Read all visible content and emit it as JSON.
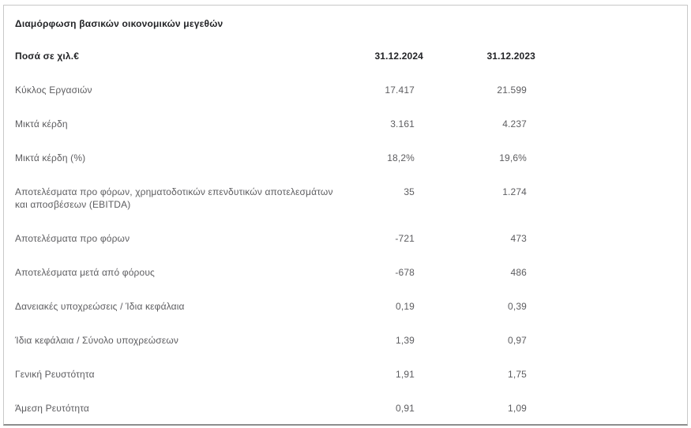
{
  "theme": {
    "text_primary": "#232427",
    "text_secondary": "#5d5d60",
    "border": "#c8c8c8",
    "border_bottom": "#8d8d8d",
    "background": "#ffffff"
  },
  "panel": {
    "title": "Διαμόρφωση βασικών οικονομικών μεγεθών",
    "table": {
      "unit_label": "Ποσά σε χιλ.€",
      "columns": [
        "31.12.2024",
        "31.12.2023"
      ],
      "rows": [
        {
          "label": "Κύκλος Εργασιών",
          "v2024": "17.417",
          "v2023": "21.599"
        },
        {
          "label": "Μικτά κέρδη",
          "v2024": "3.161",
          "v2023": "4.237"
        },
        {
          "label": "Μικτά κέρδη (%)",
          "v2024": "18,2%",
          "v2023": "19,6%"
        },
        {
          "label": "Αποτελέσματα προ φόρων, χρηματοδοτικών επενδυτικών αποτελεσμάτων και αποσβέσεων (EBITDA)",
          "v2024": "35",
          "v2023": "1.274"
        },
        {
          "label": "Αποτελέσματα προ φόρων",
          "v2024": "-721",
          "v2023": "473"
        },
        {
          "label": "Αποτελέσματα  μετά από φόρους",
          "v2024": "-678",
          "v2023": "486"
        },
        {
          "label": "Δανειακές υποχρεώσεις / Ίδια κεφάλαια",
          "v2024": "0,19",
          "v2023": "0,39"
        },
        {
          "label": "Ίδια κεφάλαια / Σύνολο υποχρεώσεων",
          "v2024": "1,39",
          "v2023": "0,97"
        },
        {
          "label": "Γενική Ρευστότητα",
          "v2024": "1,91",
          "v2023": "1,75"
        },
        {
          "label": "Άμεση Ρευτότητα",
          "v2024": "0,91",
          "v2023": "1,09"
        }
      ]
    }
  },
  "chart_data": {
    "type": "table",
    "title": "Διαμόρφωση βασικών οικονομικών μεγεθών",
    "unit": "Ποσά σε χιλ.€",
    "columns": [
      "31.12.2024",
      "31.12.2023"
    ],
    "rows": [
      [
        "Κύκλος Εργασιών",
        "17.417",
        "21.599"
      ],
      [
        "Μικτά κέρδη",
        "3.161",
        "4.237"
      ],
      [
        "Μικτά κέρδη (%)",
        "18,2%",
        "19,6%"
      ],
      [
        "Αποτελέσματα προ φόρων, χρηματοδοτικών επενδυτικών αποτελεσμάτων και αποσβέσεων (EBITDA)",
        "35",
        "1.274"
      ],
      [
        "Αποτελέσματα προ φόρων",
        "-721",
        "473"
      ],
      [
        "Αποτελέσματα μετά από φόρους",
        "-678",
        "486"
      ],
      [
        "Δανειακές υποχρεώσεις / Ίδια κεφάλαια",
        "0,19",
        "0,39"
      ],
      [
        "Ίδια κεφάλαια / Σύνολο υποχρεώσεων",
        "1,39",
        "0,97"
      ],
      [
        "Γενική Ρευστότητα",
        "1,91",
        "1,75"
      ],
      [
        "Άμεση Ρευτότητα",
        "0,91",
        "1,09"
      ]
    ]
  }
}
